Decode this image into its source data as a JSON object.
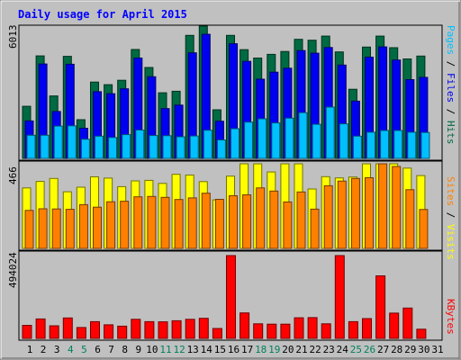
{
  "chart_data": {
    "type": "bar",
    "title": "Daily usage for April 2015",
    "categories": [
      "1",
      "2",
      "3",
      "4",
      "5",
      "6",
      "7",
      "8",
      "9",
      "10",
      "11",
      "12",
      "13",
      "14",
      "15",
      "16",
      "17",
      "18",
      "19",
      "20",
      "21",
      "22",
      "23",
      "24",
      "25",
      "26",
      "27",
      "28",
      "29",
      "30",
      "31"
    ],
    "weekend_days": [
      "4",
      "5",
      "11",
      "12",
      "18",
      "19",
      "25",
      "26"
    ],
    "panels": [
      {
        "name": "hits-files-pages",
        "ymax": 6013,
        "ylabel_parts": [
          "Pages",
          "Files",
          "Hits"
        ],
        "series": [
          {
            "name": "Hits",
            "color": "#006a42",
            "values": [
              2370,
              4660,
              2840,
              4640,
              1760,
              3470,
              3350,
              3550,
              4950,
              4130,
              2980,
              3050,
              5590,
              6013,
              2210,
              5590,
              4940,
              4560,
              4730,
              4860,
              5410,
              5370,
              5560,
              4840,
              3140,
              5060,
              5560,
              5030,
              4520,
              4650,
              null
            ]
          },
          {
            "name": "Files",
            "color": "#0000f0",
            "values": [
              1700,
              4290,
              2130,
              4280,
              1370,
              3030,
              2940,
              3160,
              4560,
              3710,
              2260,
              2420,
              4800,
              5640,
              1690,
              5210,
              4410,
              3600,
              3920,
              4100,
              4900,
              4780,
              5040,
              4240,
              2600,
              4600,
              5070,
              4470,
              3580,
              3680,
              null
            ]
          },
          {
            "name": "Pages",
            "color": "#00c0ff",
            "values": [
              1050,
              1050,
              1470,
              1480,
              870,
              1010,
              950,
              1080,
              1290,
              1040,
              1030,
              980,
              1020,
              1280,
              840,
              1350,
              1650,
              1800,
              1610,
              1830,
              2080,
              1550,
              2330,
              1570,
              1010,
              1190,
              1270,
              1270,
              1190,
              1180,
              null
            ]
          }
        ]
      },
      {
        "name": "visits-sites",
        "ymax": 466,
        "ylabel_parts": [
          "Sites",
          "Visits"
        ],
        "series": [
          {
            "name": "Visits",
            "color": "#ffff00",
            "values": [
              333,
              369,
              385,
              312,
              337,
              394,
              387,
              340,
              372,
              375,
              358,
              408,
              404,
              368,
              267,
              398,
              514,
              555,
              421,
              476,
              493,
              327,
              395,
              388,
              393,
              473,
              554,
              513,
              442,
              401,
              null
            ]
          },
          {
            "name": "Sites",
            "color": "#ff8000",
            "values": [
              209,
              218,
              217,
              215,
              241,
              227,
              257,
              260,
              284,
              286,
              281,
              269,
              278,
              304,
              270,
              290,
              295,
              333,
              316,
              256,
              311,
              216,
              345,
              371,
              385,
              389,
              530,
              451,
              323,
              214,
              null
            ]
          }
        ]
      },
      {
        "name": "kbytes",
        "ymax": 494024,
        "ylabel_parts": [
          "KBytes"
        ],
        "series": [
          {
            "name": "KBytes",
            "color": "#ff0000",
            "values": [
              78000,
              116000,
              75000,
              122000,
              65000,
              100000,
              81000,
              73000,
              114000,
              100000,
              99000,
              105000,
              114000,
              120000,
              59000,
              494024,
              152000,
              87000,
              85000,
              85000,
              123000,
              124000,
              87000,
              494024,
              100000,
              118000,
              373000,
              151000,
              181000,
              55000,
              null
            ]
          }
        ]
      }
    ]
  },
  "colors": {
    "background": "#c0c0c0",
    "plot_background": "#c0c0c0",
    "title": "#0000ff",
    "weekday_label": "#000000",
    "weekend_label": "#00805c"
  }
}
